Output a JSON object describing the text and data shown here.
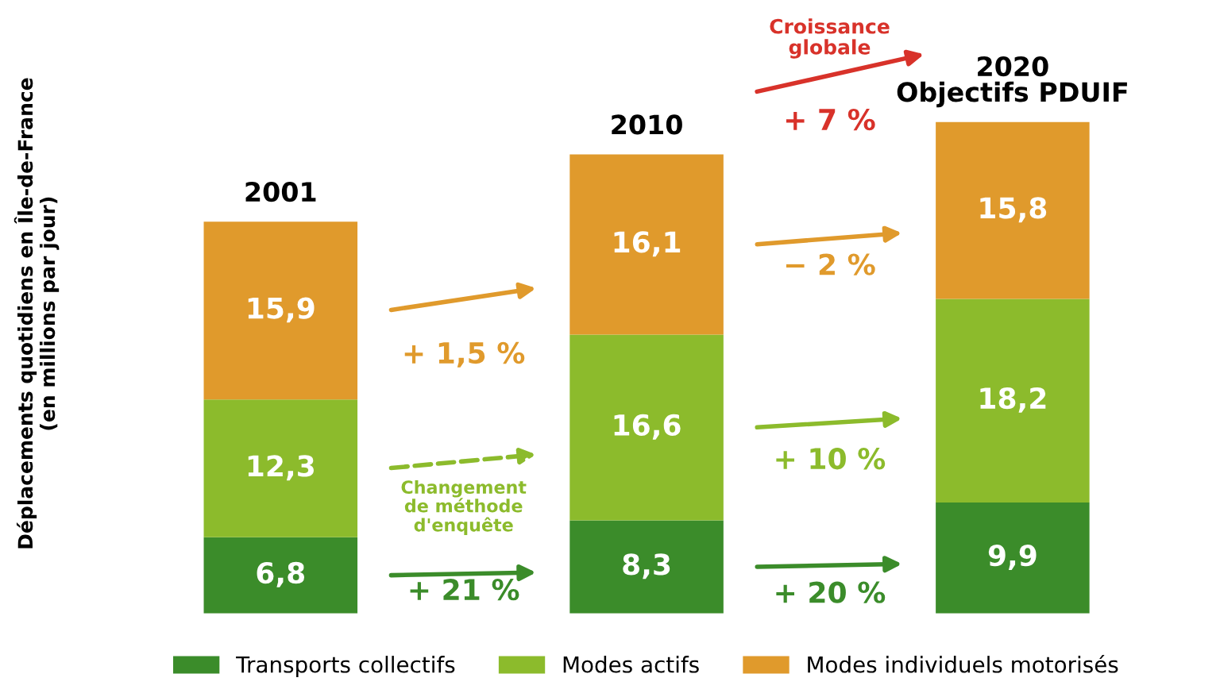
{
  "chart_data": {
    "type": "bar",
    "stacked": true,
    "ylabel": "Déplacements quotidiens en Île-de-France\n(en millions par jour)",
    "categories": [
      "2001",
      "2010",
      "2020\nObjectifs PDUIF"
    ],
    "series": [
      {
        "name": "Transports collectifs",
        "color": "#3b8c2a",
        "values": [
          6.8,
          8.3,
          9.9
        ],
        "value_labels": [
          "6,8",
          "8,3",
          "9,9"
        ]
      },
      {
        "name": "Modes actifs",
        "color": "#8cbb2c",
        "values": [
          12.3,
          16.6,
          18.2
        ],
        "value_labels": [
          "12,3",
          "16,6",
          "18,2"
        ]
      },
      {
        "name": "Modes individuels motorisés",
        "color": "#e09a2c",
        "values": [
          15.9,
          16.1,
          15.8
        ],
        "value_labels": [
          "15,9",
          "16,1",
          "15,8"
        ]
      }
    ],
    "annotations": [
      "+ 1,5 %",
      "Changement\nde méthode\nd'enquête",
      "+ 21 %",
      "Croissance\nglobale",
      "+ 7 %",
      "− 2 %",
      "+ 10 %",
      "+ 20 %"
    ],
    "legend": "bottom"
  }
}
